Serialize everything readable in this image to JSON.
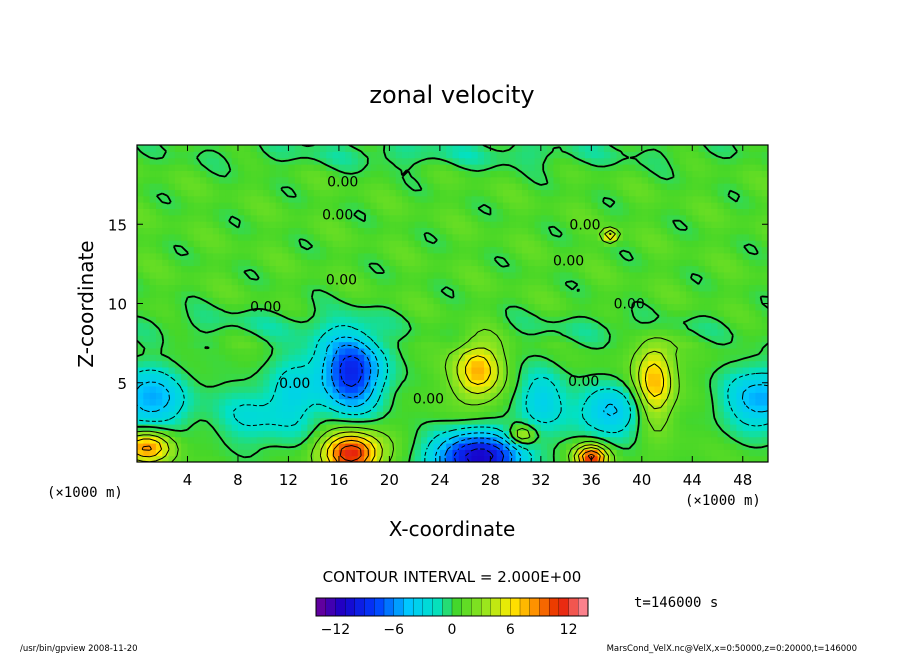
{
  "chart_data": {
    "type": "heatmap",
    "title": "zonal velocity",
    "xlabel": "X-coordinate",
    "ylabel": "Z-coordinate",
    "x_unit": "(×1000 m)",
    "x_ticks": [
      4,
      8,
      12,
      16,
      20,
      24,
      28,
      32,
      36,
      40,
      44,
      48
    ],
    "y_ticks": [
      5,
      10,
      15
    ],
    "xlim": [
      0,
      50
    ],
    "ylim": [
      0,
      20
    ],
    "contour_interval_label": "CONTOUR INTERVAL = 2.000E+00",
    "contour_labels": [
      {
        "text": "0.00",
        "x": 16.3,
        "z": 17.7
      },
      {
        "text": "0.00",
        "x": 15.9,
        "z": 15.6
      },
      {
        "text": "0.00",
        "x": 35.5,
        "z": 15.0
      },
      {
        "text": "0.00",
        "x": 34.2,
        "z": 12.7
      },
      {
        "text": "0.00",
        "x": 16.2,
        "z": 11.5
      },
      {
        "text": "0.00",
        "x": 10.2,
        "z": 9.8
      },
      {
        "text": "0.00",
        "x": 39.0,
        "z": 10.0
      },
      {
        "text": "0.00",
        "x": 35.4,
        "z": 5.1
      },
      {
        "text": "0.00",
        "x": 23.1,
        "z": 4.0
      },
      {
        "text": "0.00",
        "x": 12.5,
        "z": 5.0
      }
    ],
    "features": [
      {
        "x": 17.0,
        "z": 5.7,
        "value": -10,
        "sx": 2.5,
        "sz": 2.5
      },
      {
        "x": 27.0,
        "z": 0.3,
        "value": -12,
        "sx": 3.5,
        "sz": 1.6
      },
      {
        "x": 37.5,
        "z": 3.2,
        "value": -5,
        "sx": 3.0,
        "sz": 1.7
      },
      {
        "x": 32.0,
        "z": 4.0,
        "value": -4,
        "sx": 2.0,
        "sz": 2.0
      },
      {
        "x": 1.0,
        "z": 4.0,
        "value": -6,
        "sx": 3.0,
        "sz": 2.0
      },
      {
        "x": 49.5,
        "z": 4.0,
        "value": -6,
        "sx": 3.0,
        "sz": 2.0
      },
      {
        "x": 9.0,
        "z": 3.0,
        "value": -3,
        "sx": 3.0,
        "sz": 2.0
      },
      {
        "x": 12.5,
        "z": 4.5,
        "value": -3,
        "sx": 2.0,
        "sz": 3.0
      },
      {
        "x": 17.0,
        "z": 0.6,
        "value": 11,
        "sx": 2.3,
        "sz": 1.3
      },
      {
        "x": 27.0,
        "z": 5.8,
        "value": 7,
        "sx": 1.8,
        "sz": 1.8
      },
      {
        "x": 41.0,
        "z": 5.0,
        "value": 7,
        "sx": 1.5,
        "sz": 2.5
      },
      {
        "x": 36.0,
        "z": 0.3,
        "value": 10,
        "sx": 1.3,
        "sz": 0.8
      },
      {
        "x": 0.8,
        "z": 1.0,
        "value": 8,
        "sx": 2.0,
        "sz": 1.0
      },
      {
        "x": 30.5,
        "z": 1.7,
        "value": 5,
        "sx": 1.0,
        "sz": 0.6
      },
      {
        "x": 37.5,
        "z": 14.3,
        "value": 6,
        "sx": 0.6,
        "sz": 0.4
      },
      {
        "x": 8.0,
        "z": 8.8,
        "value": -1.2,
        "sx": 10,
        "sz": 1.0
      },
      {
        "x": 38.0,
        "z": 8.5,
        "value": -1.2,
        "sx": 10,
        "sz": 1.0
      },
      {
        "x": 25.0,
        "z": 19.5,
        "value": -1.5,
        "sx": 20,
        "sz": 1.0
      }
    ]
  },
  "colorbar": {
    "min": -14,
    "max": 14,
    "tick_values": [
      -12,
      -6,
      0,
      6,
      12
    ],
    "tick_labels": [
      "−12",
      "−6",
      "0",
      "6",
      "12"
    ]
  },
  "time_label": "t=146000  s",
  "footer": {
    "left": "/usr/bin/gpview  2008-11-20",
    "right": "MarsCond_VelX.nc@VelX,x=0:50000,z=0:20000,t=146000"
  }
}
